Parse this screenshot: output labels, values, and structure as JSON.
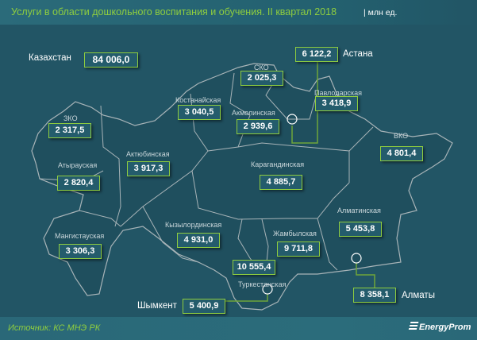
{
  "header": {
    "title": "Услуги в области дошкольного воспитания и обучения. II квартал 2018",
    "unit": "| млн ед."
  },
  "total": {
    "label": "Казахстан",
    "value": "84 006,0"
  },
  "regions": [
    {
      "name": "СКО",
      "value": "2 025,3"
    },
    {
      "name": "Павлодарская",
      "value": "3 418,9"
    },
    {
      "name": "Костанайская",
      "value": "3 040,5"
    },
    {
      "name": "Акмолинская",
      "value": "2 939,6"
    },
    {
      "name": "ЗКО",
      "value": "2 317,5"
    },
    {
      "name": "ВКО",
      "value": "4 801,4"
    },
    {
      "name": "Актюбинская",
      "value": "3 917,3"
    },
    {
      "name": "Атырауская",
      "value": "2 820,4"
    },
    {
      "name": "Карагандинская",
      "value": "4 885,7"
    },
    {
      "name": "Алматинская",
      "value": "5 453,8"
    },
    {
      "name": "Кызылординская",
      "value": "4 931,0"
    },
    {
      "name": "Жамбылская",
      "value": "9 711,8"
    },
    {
      "name": "Мангистауская",
      "value": "3 306,3"
    },
    {
      "name": "Туркестанская",
      "value": "10 555,4"
    }
  ],
  "cities": [
    {
      "name": "Астана",
      "value": "6 122,2"
    },
    {
      "name": "Алматы",
      "value": "8 358,1"
    },
    {
      "name": "Шымкент",
      "value": "5 400,9"
    }
  ],
  "footer": {
    "source": "Источник: КС МНЭ РК",
    "logo": "EnergyProm"
  },
  "colors": {
    "accent": "#8fce3f",
    "background": "#225565"
  }
}
